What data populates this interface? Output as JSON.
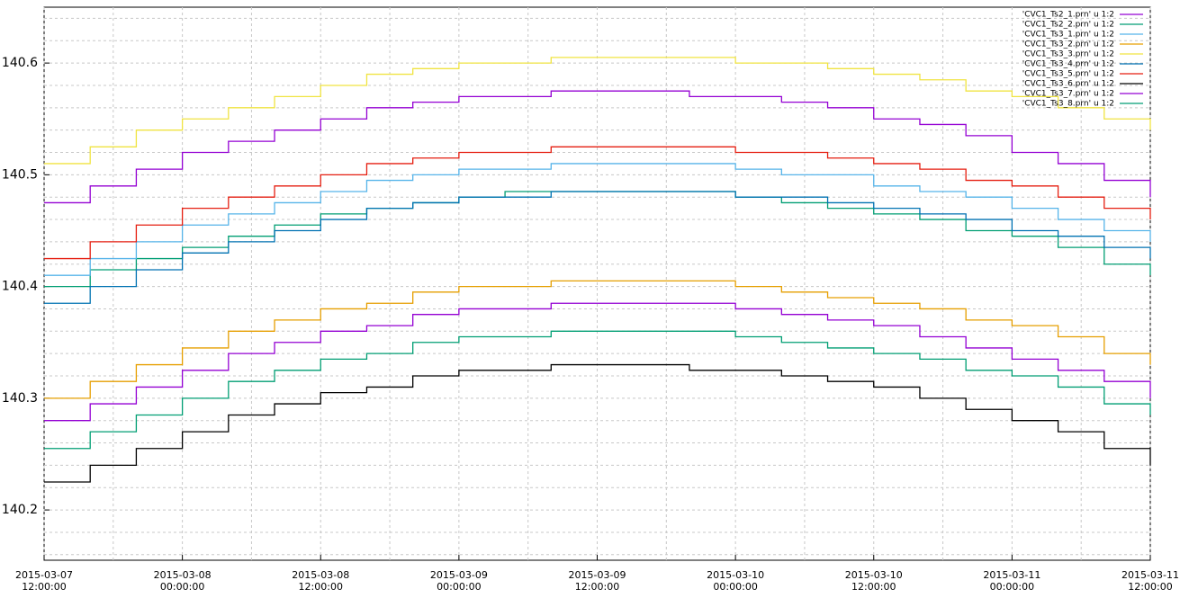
{
  "chart_data": {
    "type": "line",
    "style": "steps",
    "legend_position": "top-right",
    "grid": true,
    "x": [
      "2015-03-07 12:00:00",
      "2015-03-07 16:00:00",
      "2015-03-07 20:00:00",
      "2015-03-08 00:00:00",
      "2015-03-08 04:00:00",
      "2015-03-08 08:00:00",
      "2015-03-08 12:00:00",
      "2015-03-08 16:00:00",
      "2015-03-08 20:00:00",
      "2015-03-09 00:00:00",
      "2015-03-09 04:00:00",
      "2015-03-09 08:00:00",
      "2015-03-09 12:00:00",
      "2015-03-09 16:00:00",
      "2015-03-09 20:00:00",
      "2015-03-10 00:00:00",
      "2015-03-10 04:00:00",
      "2015-03-10 08:00:00",
      "2015-03-10 12:00:00",
      "2015-03-10 16:00:00",
      "2015-03-10 20:00:00",
      "2015-03-11 00:00:00",
      "2015-03-11 04:00:00",
      "2015-03-11 08:00:00",
      "2015-03-11 12:00:00"
    ],
    "xlim": [
      "2015-03-07 12:00:00",
      "2015-03-11 12:00:00"
    ],
    "xticks": [
      "2015-03-07 12:00:00",
      "2015-03-08 00:00:00",
      "2015-03-08 12:00:00",
      "2015-03-09 00:00:00",
      "2015-03-09 12:00:00",
      "2015-03-10 00:00:00",
      "2015-03-10 12:00:00",
      "2015-03-11 00:00:00",
      "2015-03-11 12:00:00"
    ],
    "xgrid_minor": [
      "2015-03-07 18:00:00",
      "2015-03-08 06:00:00",
      "2015-03-08 18:00:00",
      "2015-03-09 06:00:00",
      "2015-03-09 18:00:00",
      "2015-03-10 06:00:00",
      "2015-03-10 18:00:00",
      "2015-03-11 06:00:00"
    ],
    "ylim": [
      140.155,
      140.65
    ],
    "yticks": [
      140.2,
      140.3,
      140.4,
      140.5,
      140.6
    ],
    "ygrid_minor": [
      140.16,
      140.18,
      140.22,
      140.24,
      140.26,
      140.28,
      140.32,
      140.34,
      140.36,
      140.38,
      140.42,
      140.44,
      140.46,
      140.48,
      140.52,
      140.54,
      140.56,
      140.58,
      140.62,
      140.64
    ],
    "series": [
      {
        "name": "'CVC1_Ts2_1.prn' u 1:2",
        "color": "#9400d3",
        "values": [
          140.475,
          140.49,
          140.505,
          140.52,
          140.53,
          140.54,
          140.55,
          140.56,
          140.565,
          140.57,
          140.57,
          140.575,
          140.575,
          140.575,
          140.57,
          140.57,
          140.565,
          140.56,
          140.55,
          140.545,
          140.535,
          140.52,
          140.51,
          140.495,
          140.48
        ]
      },
      {
        "name": "'CVC1_Ts2_2.prn' u 1:2",
        "color": "#009e73",
        "values": [
          140.4,
          140.415,
          140.425,
          140.435,
          140.445,
          140.455,
          140.465,
          140.47,
          140.475,
          140.48,
          140.485,
          140.485,
          140.485,
          140.485,
          140.485,
          140.48,
          140.475,
          140.47,
          140.465,
          140.46,
          140.45,
          140.445,
          140.435,
          140.42,
          140.41
        ]
      },
      {
        "name": "'CVC1_Ts3_1.prn' u 1:2",
        "color": "#56b4e9",
        "values": [
          140.41,
          140.425,
          140.44,
          140.455,
          140.465,
          140.475,
          140.485,
          140.495,
          140.5,
          140.505,
          140.505,
          140.51,
          140.51,
          140.51,
          140.51,
          140.505,
          140.5,
          140.5,
          140.49,
          140.485,
          140.48,
          140.47,
          140.46,
          140.45,
          140.44
        ]
      },
      {
        "name": "'CVC1_Ts3_2.prn' u 1:2",
        "color": "#e69f00",
        "values": [
          140.3,
          140.315,
          140.33,
          140.345,
          140.36,
          140.37,
          140.38,
          140.385,
          140.395,
          140.4,
          140.4,
          140.405,
          140.405,
          140.405,
          140.405,
          140.4,
          140.395,
          140.39,
          140.385,
          140.38,
          140.37,
          140.365,
          140.355,
          140.34,
          140.33
        ]
      },
      {
        "name": "'CVC1_Ts3_3.prn' u 1:2",
        "color": "#f0e442",
        "values": [
          140.51,
          140.525,
          140.54,
          140.55,
          140.56,
          140.57,
          140.58,
          140.59,
          140.595,
          140.6,
          140.6,
          140.605,
          140.605,
          140.605,
          140.605,
          140.6,
          140.6,
          140.595,
          140.59,
          140.585,
          140.575,
          140.57,
          140.56,
          140.55,
          140.54
        ]
      },
      {
        "name": "'CVC1_Ts3_4.prn' u 1:2",
        "color": "#0072b2",
        "values": [
          140.385,
          140.4,
          140.415,
          140.43,
          140.44,
          140.45,
          140.46,
          140.47,
          140.475,
          140.48,
          140.48,
          140.485,
          140.485,
          140.485,
          140.485,
          140.48,
          140.48,
          140.475,
          140.47,
          140.465,
          140.46,
          140.45,
          140.445,
          140.435,
          140.425
        ]
      },
      {
        "name": "'CVC1_Ts3_5.prn' u 1:2",
        "color": "#e51e10",
        "values": [
          140.425,
          140.44,
          140.455,
          140.47,
          140.48,
          140.49,
          140.5,
          140.51,
          140.515,
          140.52,
          140.52,
          140.525,
          140.525,
          140.525,
          140.525,
          140.52,
          140.52,
          140.515,
          140.51,
          140.505,
          140.495,
          140.49,
          140.48,
          140.47,
          140.46
        ]
      },
      {
        "name": "'CVC1_Ts3_6.prn' u 1:2",
        "color": "#000000",
        "values": [
          140.225,
          140.24,
          140.255,
          140.27,
          140.285,
          140.295,
          140.305,
          140.31,
          140.32,
          140.325,
          140.325,
          140.33,
          140.33,
          140.33,
          140.325,
          140.325,
          140.32,
          140.315,
          140.31,
          140.3,
          140.29,
          140.28,
          140.27,
          140.255,
          140.24
        ]
      },
      {
        "name": "'CVC1_Ts3_7.prn' u 1:2",
        "color": "#9400d3",
        "values": [
          140.28,
          140.295,
          140.31,
          140.325,
          140.34,
          140.35,
          140.36,
          140.365,
          140.375,
          140.38,
          140.38,
          140.385,
          140.385,
          140.385,
          140.385,
          140.38,
          140.375,
          140.37,
          140.365,
          140.355,
          140.345,
          140.335,
          140.325,
          140.315,
          140.3
        ]
      },
      {
        "name": "'CVC1_Ts3_8.prn' u 1:2",
        "color": "#009e73",
        "values": [
          140.255,
          140.27,
          140.285,
          140.3,
          140.315,
          140.325,
          140.335,
          140.34,
          140.35,
          140.355,
          140.355,
          140.36,
          140.36,
          140.36,
          140.36,
          140.355,
          140.35,
          140.345,
          140.34,
          140.335,
          140.325,
          140.32,
          140.31,
          140.295,
          140.285
        ]
      }
    ]
  }
}
